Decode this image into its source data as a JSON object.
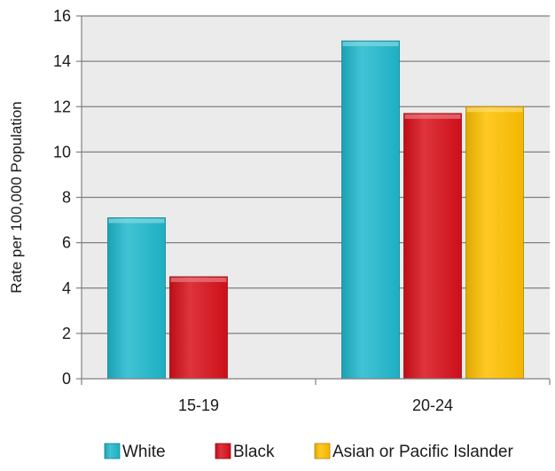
{
  "chart_data": {
    "type": "bar",
    "title": "",
    "xlabel": "",
    "ylabel": "Rate per 100,000 Population",
    "categories": [
      "15-19",
      "20-24"
    ],
    "series": [
      {
        "name": "White",
        "values": [
          7.1,
          14.9
        ],
        "color": "#1fb8cc"
      },
      {
        "name": "Black",
        "values": [
          4.5,
          11.7
        ],
        "color": "#d8101a"
      },
      {
        "name": "Asian or Pacific Islander",
        "values": [
          null,
          12.0
        ],
        "color": "#ffc000"
      }
    ],
    "ylim": [
      0,
      16
    ],
    "yticks": [
      0,
      2,
      4,
      6,
      8,
      10,
      12,
      14,
      16
    ],
    "grid": true,
    "legend_position": "bottom",
    "plot_background": "#ebebeb",
    "gridline_color": "#7f7f7f"
  }
}
